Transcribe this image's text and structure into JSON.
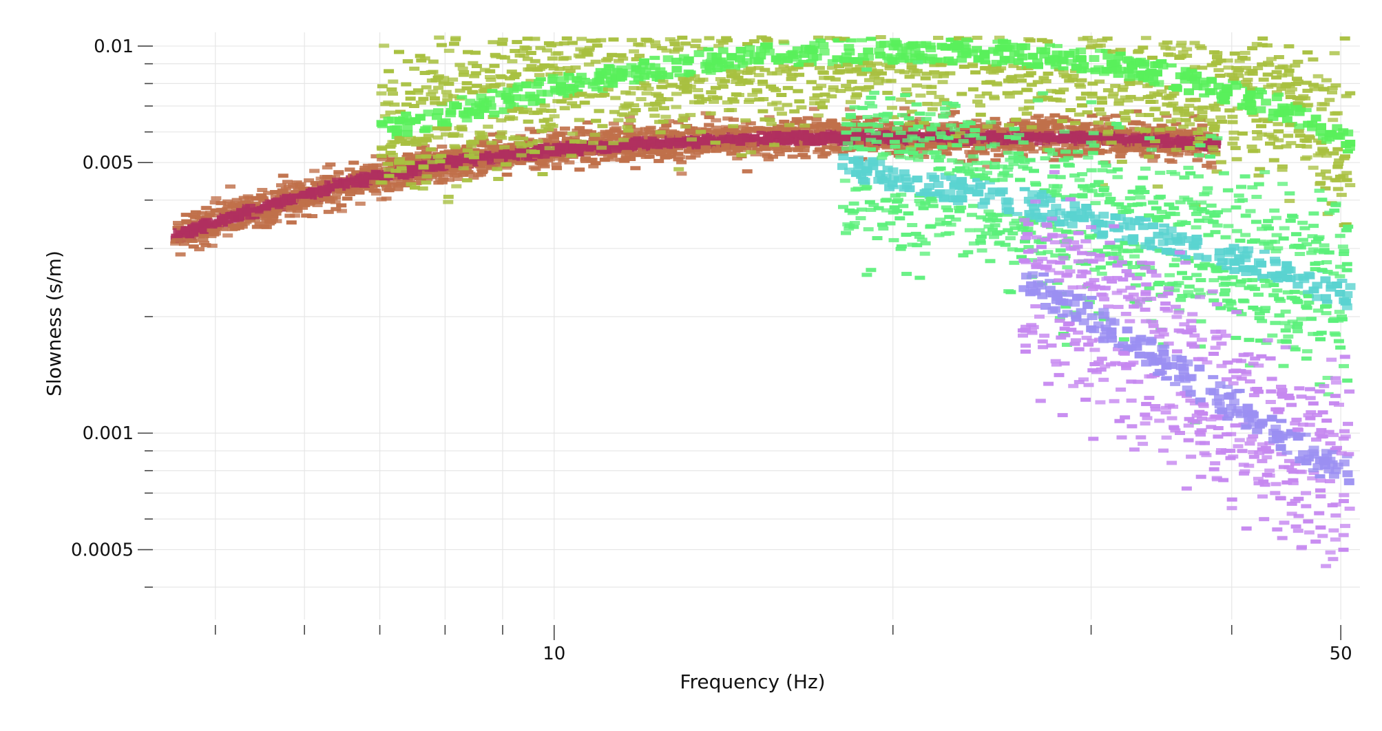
{
  "chart_data": {
    "type": "heatmap",
    "title": "",
    "xlabel": "Frequency (Hz)",
    "ylabel": "Slowness (s/m)",
    "x_scale": "log",
    "y_scale": "log",
    "xlim": [
      4.4,
      52
    ],
    "ylim": [
      0.00033,
      0.0105
    ],
    "x_major_ticks": [
      {
        "value": 10,
        "label": "10"
      },
      {
        "value": 50,
        "label": "50"
      }
    ],
    "x_minor_ticks": [
      5,
      6,
      7,
      8,
      9,
      20,
      30,
      40
    ],
    "y_major_ticks": [
      {
        "value": 0.01,
        "label": "0.01"
      },
      {
        "value": 0.005,
        "label": "0.005"
      },
      {
        "value": 0.001,
        "label": "0.001"
      },
      {
        "value": 0.0005,
        "label": "0.0005"
      }
    ],
    "y_minor_ticks": [
      0.009,
      0.008,
      0.007,
      0.006,
      0.004,
      0.003,
      0.002,
      0.0009,
      0.0008,
      0.0007,
      0.0006,
      0.0004
    ],
    "grid": true,
    "legend": "none",
    "series": [
      {
        "mode": "fundamental",
        "color": "#b0305f",
        "alt_color": "#c0704a",
        "points": [
          [
            4.6,
            0.0033
          ],
          [
            5.0,
            0.0036
          ],
          [
            5.5,
            0.0039
          ],
          [
            6.0,
            0.0042
          ],
          [
            6.5,
            0.0045
          ],
          [
            7.0,
            0.0047
          ],
          [
            7.5,
            0.0049
          ],
          [
            8.0,
            0.0051
          ],
          [
            9.0,
            0.0053
          ],
          [
            10.0,
            0.0055
          ],
          [
            11.0,
            0.0056
          ],
          [
            12.0,
            0.0057
          ],
          [
            14.0,
            0.0058
          ],
          [
            16.0,
            0.0059
          ],
          [
            18.0,
            0.0059
          ],
          [
            20.0,
            0.0059
          ],
          [
            25.0,
            0.0059
          ],
          [
            30.0,
            0.0059
          ],
          [
            34.0,
            0.0058
          ],
          [
            38.0,
            0.0057
          ]
        ]
      },
      {
        "mode": "first-higher",
        "color": "#59f05b",
        "alt_color": "#a8c040",
        "points": [
          [
            7.0,
            0.0062
          ],
          [
            8.0,
            0.0068
          ],
          [
            9.0,
            0.0074
          ],
          [
            10.0,
            0.008
          ],
          [
            12.0,
            0.0088
          ],
          [
            14.0,
            0.0094
          ],
          [
            16.0,
            0.0097
          ],
          [
            20.0,
            0.0099
          ],
          [
            24.0,
            0.0098
          ],
          [
            28.0,
            0.0095
          ],
          [
            32.0,
            0.009
          ],
          [
            36.0,
            0.0083
          ],
          [
            40.0,
            0.0076
          ],
          [
            45.0,
            0.0068
          ],
          [
            50.0,
            0.0058
          ]
        ]
      },
      {
        "mode": "second-higher",
        "color": "#5ad3d0",
        "alt_color": "#5bf07a",
        "points": [
          [
            18.0,
            0.005
          ],
          [
            22.0,
            0.0044
          ],
          [
            26.0,
            0.004
          ],
          [
            30.0,
            0.0036
          ],
          [
            35.0,
            0.0032
          ],
          [
            40.0,
            0.0029
          ],
          [
            45.0,
            0.0026
          ],
          [
            50.0,
            0.0023
          ]
        ]
      },
      {
        "mode": "third-higher",
        "color": "#9b8ff2",
        "alt_color": "#c688f0",
        "points": [
          [
            26.0,
            0.0025
          ],
          [
            30.0,
            0.002
          ],
          [
            34.0,
            0.0016
          ],
          [
            38.0,
            0.0013
          ],
          [
            42.0,
            0.0011
          ],
          [
            46.0,
            0.0009
          ],
          [
            50.0,
            0.0008
          ]
        ]
      }
    ]
  }
}
